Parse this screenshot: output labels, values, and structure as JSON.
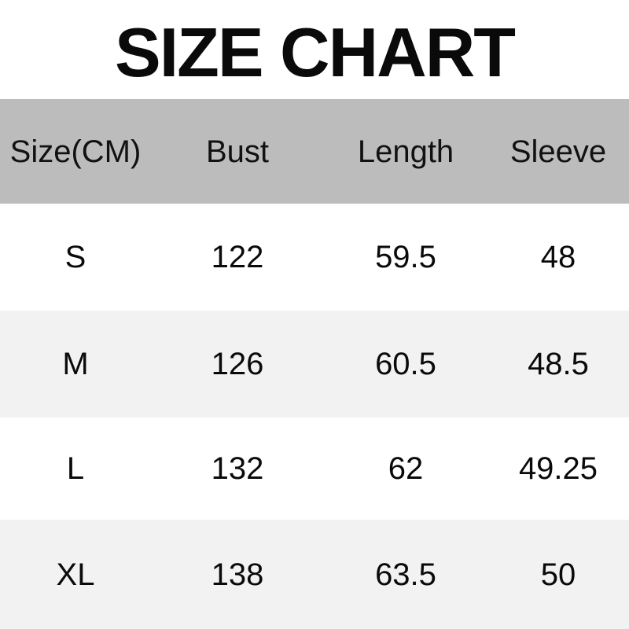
{
  "title": "SIZE CHART",
  "colors": {
    "header_bg": "#bcbcbc",
    "row_bg": "#ffffff",
    "row_alt_bg": "#f2f2f2",
    "text": "#0a0a0a"
  },
  "table": {
    "columns": [
      "Size(CM)",
      "Bust",
      "Length",
      "Sleeve"
    ],
    "rows": [
      {
        "size": "S",
        "bust": "122",
        "length": "59.5",
        "sleeve": "48"
      },
      {
        "size": "M",
        "bust": "126",
        "length": "60.5",
        "sleeve": "48.5"
      },
      {
        "size": "L",
        "bust": "132",
        "length": "62",
        "sleeve": "49.25"
      },
      {
        "size": "XL",
        "bust": "138",
        "length": "63.5",
        "sleeve": "50"
      }
    ]
  },
  "chart_data": {
    "type": "table",
    "title": "SIZE CHART",
    "unit": "CM",
    "columns": [
      "Size(CM)",
      "Bust",
      "Length",
      "Sleeve"
    ],
    "rows": [
      [
        "S",
        122,
        59.5,
        48
      ],
      [
        "M",
        126,
        60.5,
        48.5
      ],
      [
        "L",
        132,
        62,
        49.25
      ],
      [
        "XL",
        138,
        63.5,
        50
      ]
    ]
  }
}
